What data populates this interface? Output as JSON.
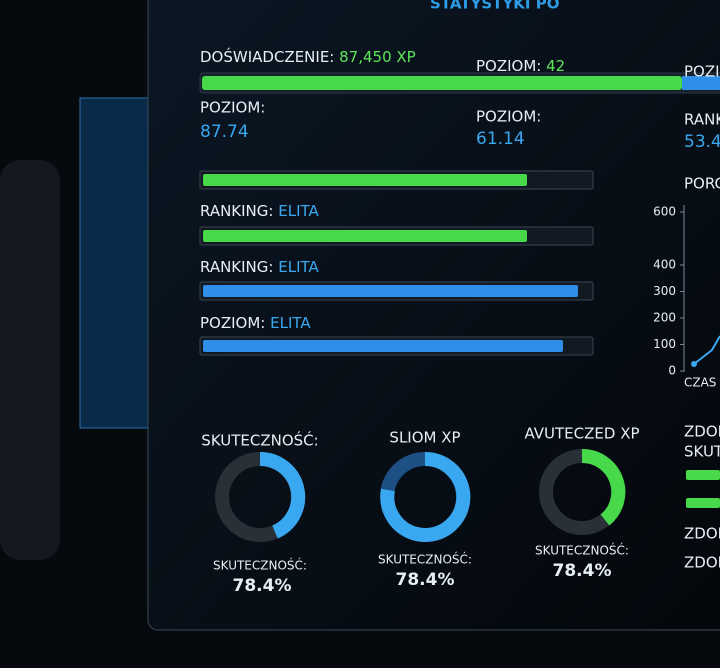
{
  "title": "STATYSTYKI PO",
  "xp": {
    "label": "DOŚWIADCZENIE:",
    "value": "87,450 XP"
  },
  "level_top": {
    "label": "POZIOM:",
    "value": "42"
  },
  "right_cut": [
    "POZIC",
    "RANK",
    "53.4",
    "PORC"
  ],
  "stats": [
    {
      "label": "POZIOM:",
      "value": "87.74"
    },
    {
      "label": "POZIOM:",
      "value": "61.14"
    }
  ],
  "bars": [
    {
      "label": "RANKING:",
      "value": "ELITA"
    },
    {
      "label": "RANKING:",
      "value": "ELITA"
    },
    {
      "label": "POZIOM:",
      "value": "ELITA"
    }
  ],
  "mini_chart": {
    "yticks": [
      0,
      100,
      200,
      300,
      400,
      600
    ],
    "x_label": "CZAS"
  },
  "donuts": [
    {
      "title": "SKUTECZNOŚĆ:",
      "label": "SKUTECZNOŚĆ:",
      "value": "78.4%"
    },
    {
      "title": "SLIOM XP",
      "label": "SKUTECZNOŚĆ:",
      "value": "78.4%"
    },
    {
      "title": "AVUTECZED XP",
      "label": "SKUTECZNOŚĆ:",
      "value": "78.4%"
    }
  ],
  "side_list": [
    "ZDOB",
    "SKUT",
    "ZDOB",
    "ZDOB"
  ]
}
